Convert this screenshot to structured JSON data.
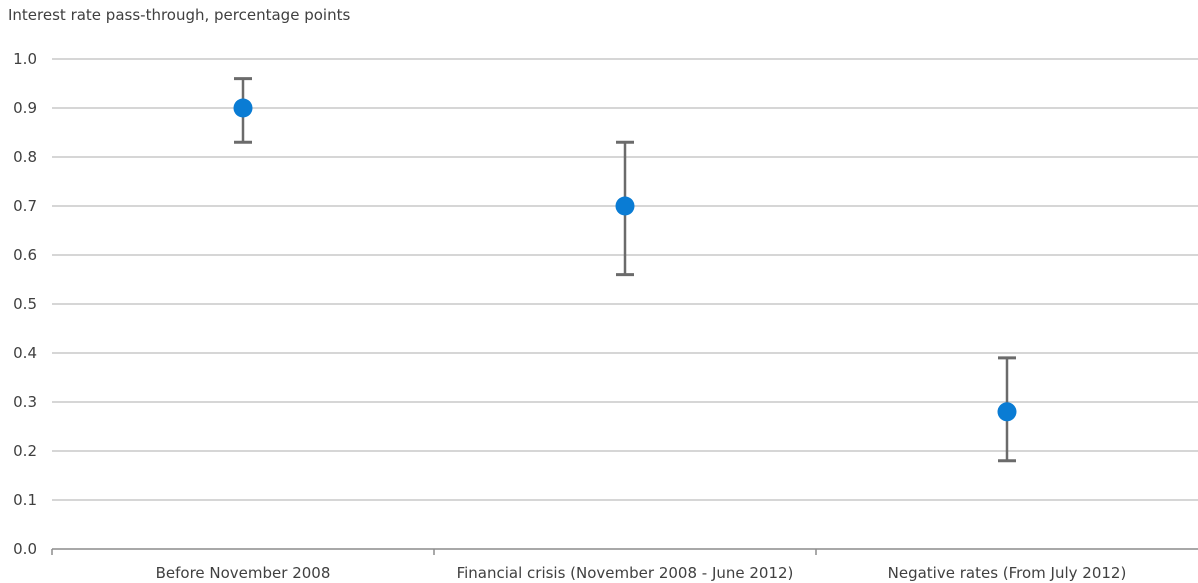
{
  "chart_data": {
    "type": "scatter",
    "title": "Interest rate pass-through, percentage points",
    "xlabel": "",
    "ylabel": "",
    "categories": [
      "Before November 2008",
      "Financial crisis (November 2008 - June 2012)",
      "Negative rates (From July 2012)"
    ],
    "series": [
      {
        "values": [
          0.9,
          0.7,
          0.28
        ],
        "error_low": [
          0.83,
          0.56,
          0.18
        ],
        "error_high": [
          0.96,
          0.83,
          0.39
        ]
      }
    ],
    "ylim": [
      0.0,
      1.0
    ],
    "yticks": [
      "0.0",
      "0.1",
      "0.2",
      "0.3",
      "0.4",
      "0.5",
      "0.6",
      "0.7",
      "0.8",
      "0.9",
      "1.0"
    ],
    "grid": true,
    "legend": "none",
    "colors": {
      "point": "#0A7CD4",
      "error_bar": "#6B6B6B",
      "grid": "#C8C8C8",
      "axis": "#8C8C8C",
      "text": "#404040"
    }
  }
}
